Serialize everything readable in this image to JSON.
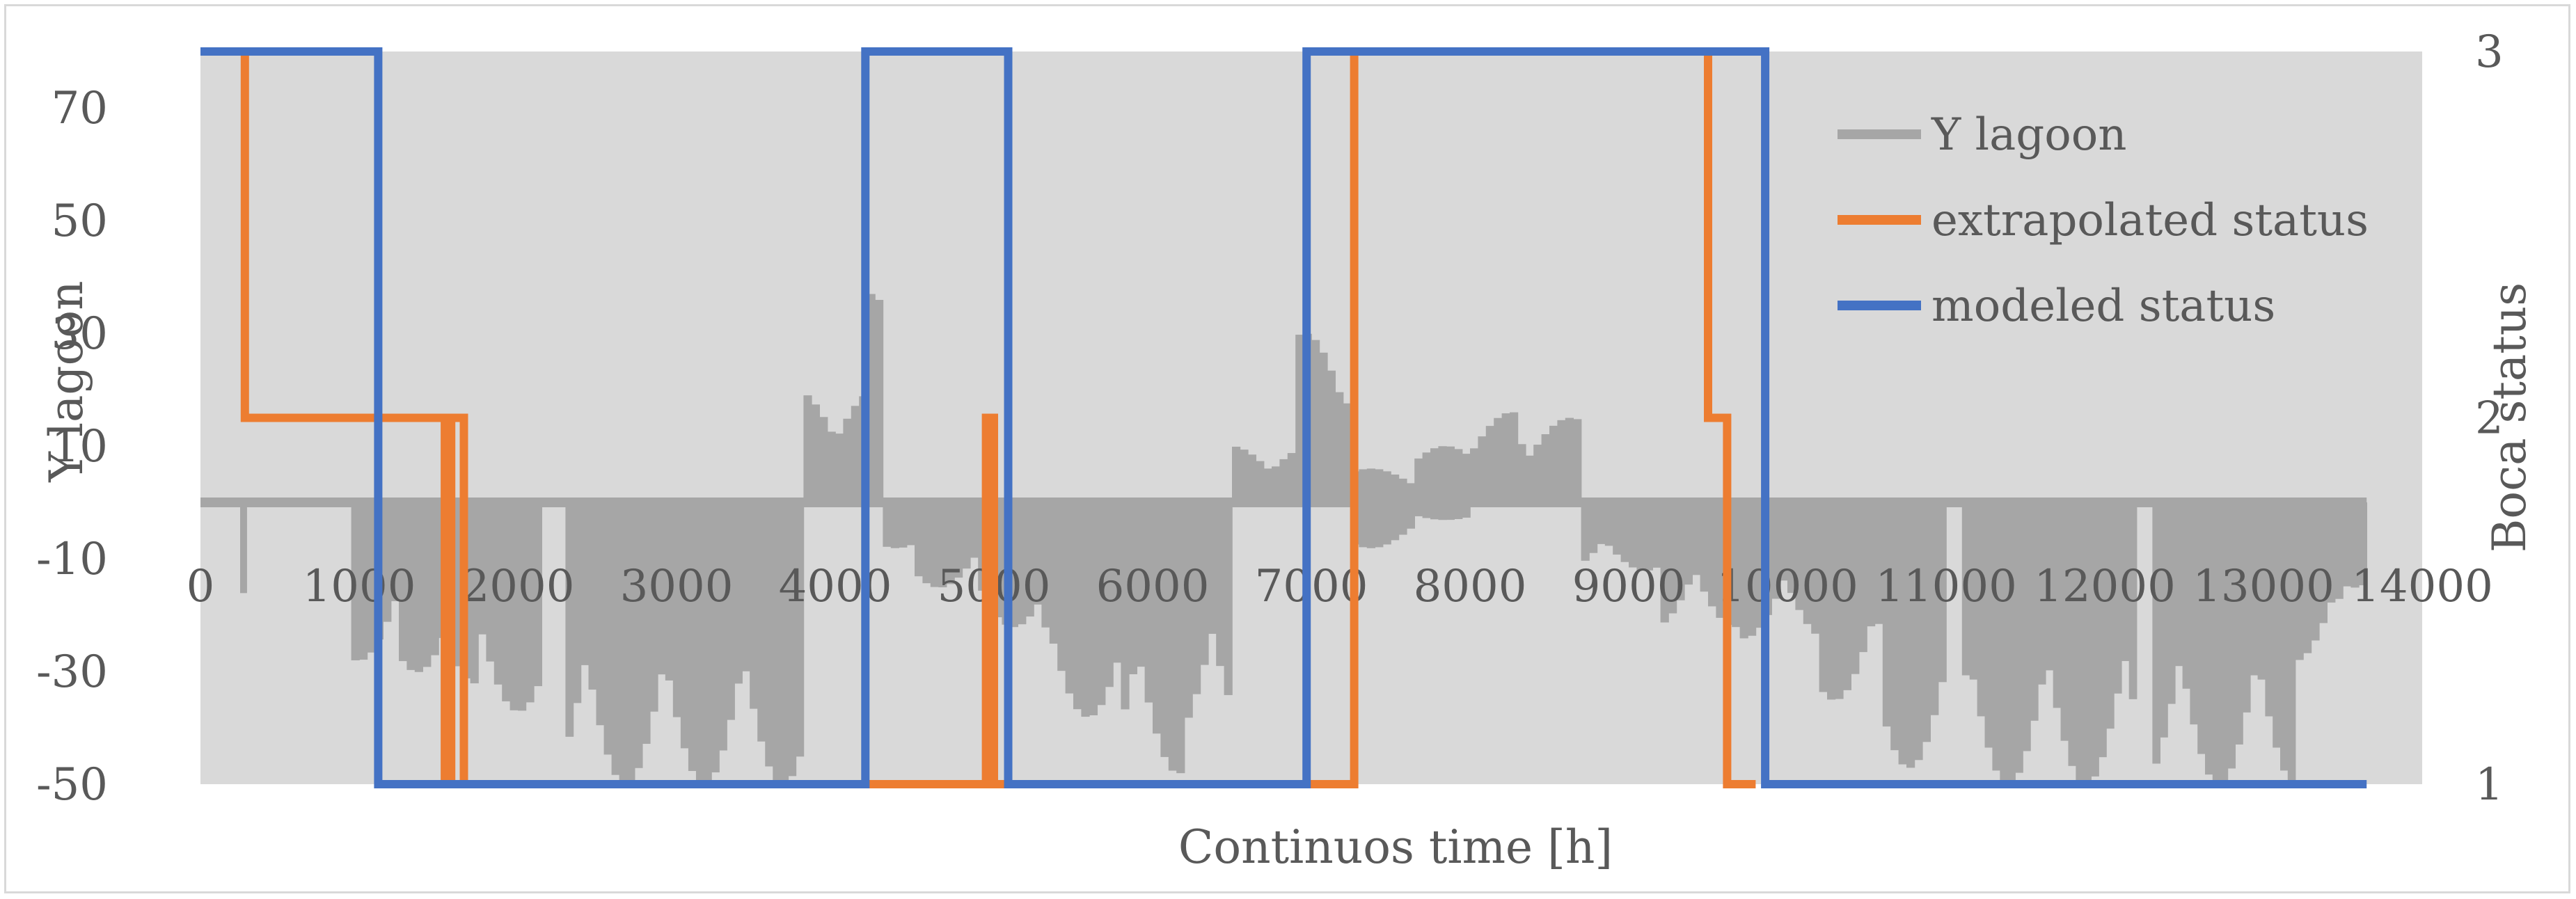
{
  "chart_data": {
    "type": "line",
    "xlabel": "Continuos time [h]",
    "ylabel": "Y lagoon",
    "y2label": "Boca status",
    "xlim": [
      0,
      14000
    ],
    "ylim": [
      -50,
      80
    ],
    "y2lim": [
      1,
      3
    ],
    "x_ticks": [
      "0",
      "1000",
      "2000",
      "3000",
      "4000",
      "5000",
      "6000",
      "7000",
      "8000",
      "9000",
      "10000",
      "11000",
      "12000",
      "13000",
      "14000"
    ],
    "y_ticks": [
      "70",
      "50",
      "30",
      "10",
      "-10",
      "-30",
      "-50"
    ],
    "y2_ticks": [
      "3",
      "2",
      "1"
    ],
    "x_axis_at_y": 0,
    "plot_background": "#d9d9d9",
    "legend_position": "top-right",
    "series": [
      {
        "name": "Y lagoon",
        "axis": "left",
        "color": "#a6a6a6",
        "style": "dense-bars",
        "segments": [
          {
            "x": [
              0,
              250
            ],
            "min": 0,
            "max": 0
          },
          {
            "x": [
              250,
              290
            ],
            "min": -18,
            "max": 0
          },
          {
            "x": [
              290,
              950
            ],
            "min": 0,
            "max": 0
          },
          {
            "x": [
              950,
              1250
            ],
            "min": -28,
            "max": 0
          },
          {
            "x": [
              1250,
              1550
            ],
            "min": -30,
            "max": 0
          },
          {
            "x": [
              1550,
              1750
            ],
            "min": -32,
            "max": 0
          },
          {
            "x": [
              1750,
              2150
            ],
            "min": -37,
            "max": 0
          },
          {
            "x": [
              2150,
              2300
            ],
            "min": 0,
            "max": 0
          },
          {
            "x": [
              2300,
              3800
            ],
            "min": -50,
            "max": 0
          },
          {
            "x": [
              3800,
              4200
            ],
            "min": 0,
            "max": 20
          },
          {
            "x": [
              4200,
              4300
            ],
            "min": 0,
            "max": 37
          },
          {
            "x": [
              4300,
              4500
            ],
            "min": -8,
            "max": 0
          },
          {
            "x": [
              4500,
              4900
            ],
            "min": -15,
            "max": 0
          },
          {
            "x": [
              4900,
              5300
            ],
            "min": -22,
            "max": 0
          },
          {
            "x": [
              5300,
              5800
            ],
            "min": -38,
            "max": 0
          },
          {
            "x": [
              5800,
              6200
            ],
            "min": -48,
            "max": 0
          },
          {
            "x": [
              6200,
              6500
            ],
            "min": -42,
            "max": 0
          },
          {
            "x": [
              6500,
              6900
            ],
            "min": 0,
            "max": 10
          },
          {
            "x": [
              6900,
              7250
            ],
            "min": 0,
            "max": 30
          },
          {
            "x": [
              7250,
              7650
            ],
            "min": -8,
            "max": 6
          },
          {
            "x": [
              7650,
              8000
            ],
            "min": -3,
            "max": 10
          },
          {
            "x": [
              8000,
              8300
            ],
            "min": 0,
            "max": 16
          },
          {
            "x": [
              8300,
              8700
            ],
            "min": 0,
            "max": 15
          },
          {
            "x": [
              8700,
              9200
            ],
            "min": -12,
            "max": 0
          },
          {
            "x": [
              9200,
              9700
            ],
            "min": -22,
            "max": 0
          },
          {
            "x": [
              9700,
              10200
            ],
            "min": -24,
            "max": 0
          },
          {
            "x": [
              10200,
              10600
            ],
            "min": -35,
            "max": 0
          },
          {
            "x": [
              10600,
              11000
            ],
            "min": -47,
            "max": 0
          },
          {
            "x": [
              11000,
              11100
            ],
            "min": 0,
            "max": 0
          },
          {
            "x": [
              11100,
              12200
            ],
            "min": -50,
            "max": 0
          },
          {
            "x": [
              12200,
              12300
            ],
            "min": 0,
            "max": 0
          },
          {
            "x": [
              12300,
              13200
            ],
            "min": -50,
            "max": 0
          },
          {
            "x": [
              13200,
              13500
            ],
            "min": -28,
            "max": 0
          },
          {
            "x": [
              13500,
              14000
            ],
            "min": -15,
            "max": 0
          }
        ]
      },
      {
        "name": "extrapolated status",
        "axis": "right",
        "color": "#ed7d31",
        "x": [
          0,
          280,
          280,
          1540,
          1540,
          1580,
          1580,
          1660,
          1660,
          4950,
          4950,
          5000,
          5000,
          7270,
          7270,
          9500,
          9500,
          9580,
          9580,
          9620,
          9620,
          9800
        ],
        "y": [
          3,
          3,
          2,
          2,
          1,
          1,
          2,
          2,
          1,
          1,
          2,
          2,
          1,
          1,
          3,
          3,
          2,
          2,
          2,
          2,
          1,
          1
        ]
      },
      {
        "name": "modeled status",
        "axis": "right",
        "color": "#4472c4",
        "x": [
          0,
          1120,
          1120,
          4190,
          4190,
          5090,
          5090,
          6970,
          6970,
          9860,
          9860,
          13650
        ],
        "y": [
          3,
          3,
          1,
          1,
          3,
          3,
          1,
          1,
          3,
          3,
          1,
          1
        ]
      }
    ]
  }
}
